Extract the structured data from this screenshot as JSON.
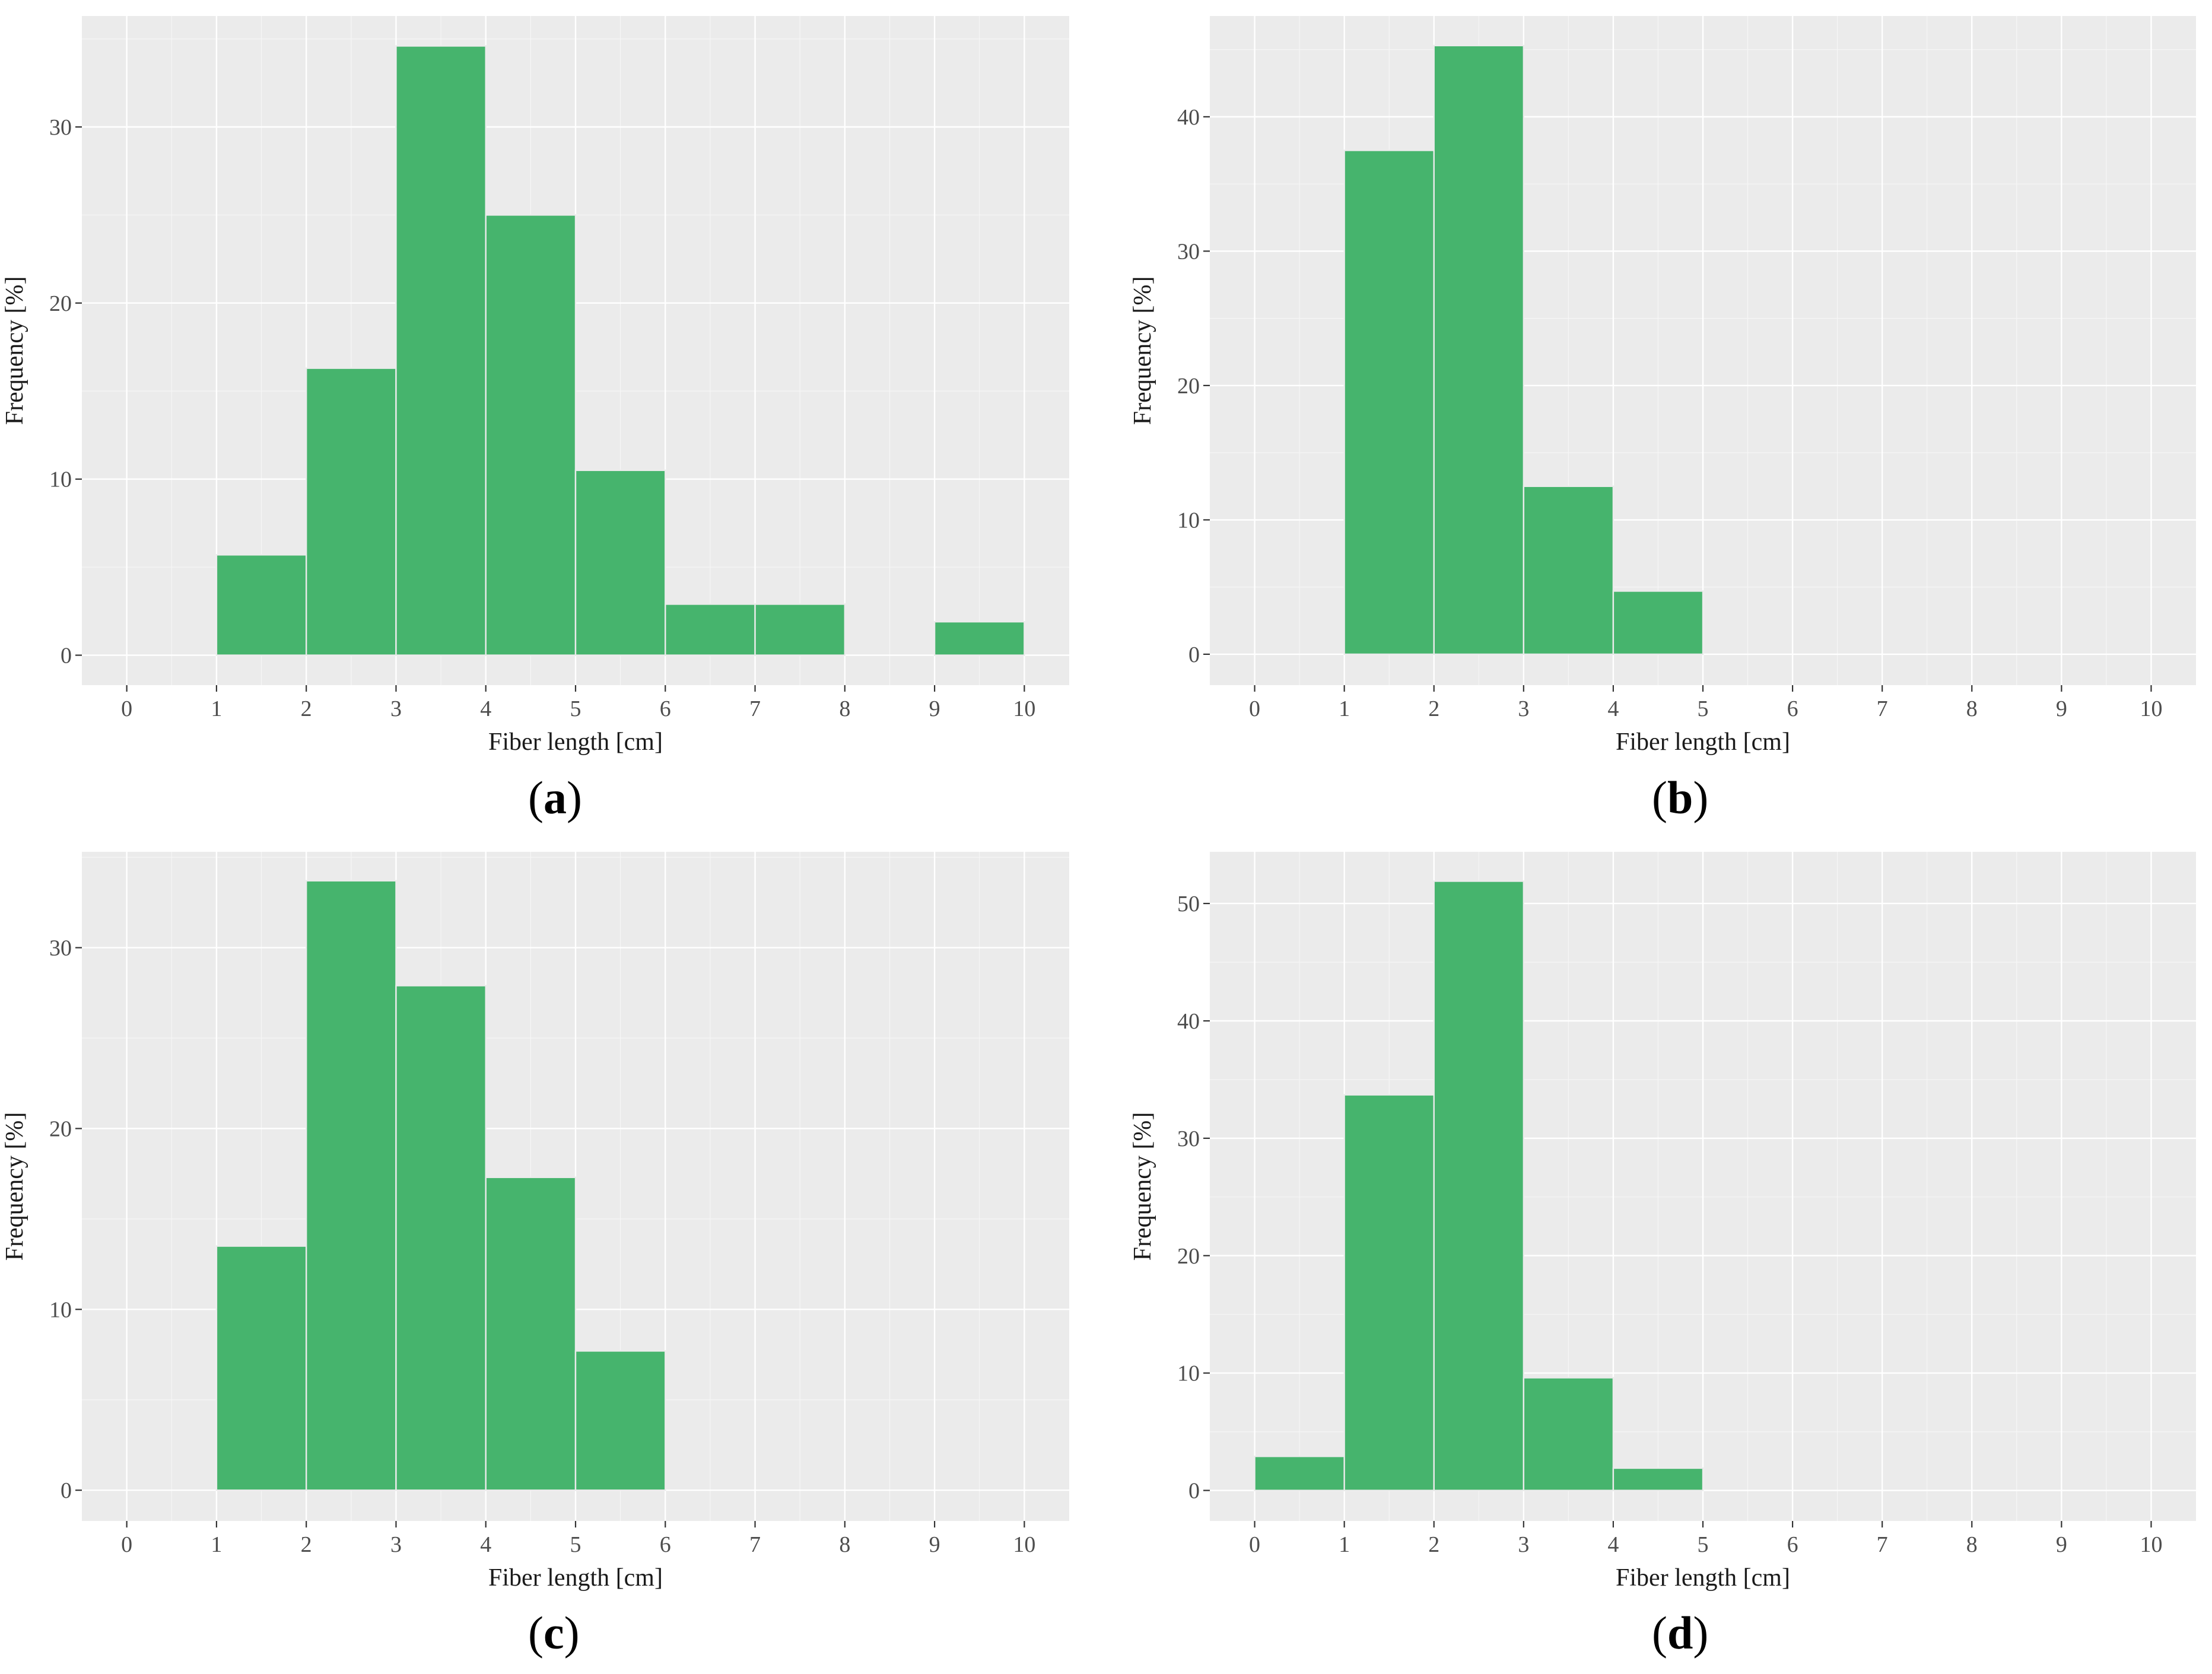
{
  "colors": {
    "bar": "#46b46d",
    "panel_bg": "#ebebeb",
    "grid": "#ffffff"
  },
  "chart_data": [
    {
      "id": "a",
      "type": "bar",
      "label": "a",
      "xlabel": "Fiber length [cm]",
      "ylabel": "Frequency [%]",
      "xlim": [
        -0.5,
        10.5
      ],
      "ylim": [
        -1.7,
        36.3
      ],
      "x_ticks": [
        0,
        1,
        2,
        3,
        4,
        5,
        6,
        7,
        8,
        9,
        10
      ],
      "y_ticks": [
        0,
        10,
        20,
        30
      ],
      "bins": [
        {
          "from": 1,
          "to": 2,
          "value": 5.7
        },
        {
          "from": 2,
          "to": 3,
          "value": 16.3
        },
        {
          "from": 3,
          "to": 4,
          "value": 34.6
        },
        {
          "from": 4,
          "to": 5,
          "value": 25.0
        },
        {
          "from": 5,
          "to": 6,
          "value": 10.5
        },
        {
          "from": 6,
          "to": 7,
          "value": 2.9
        },
        {
          "from": 7,
          "to": 8,
          "value": 2.9
        },
        {
          "from": 9,
          "to": 10,
          "value": 1.9
        }
      ]
    },
    {
      "id": "b",
      "type": "bar",
      "label": "b",
      "xlabel": "Fiber length [cm]",
      "ylabel": "Frequency [%]",
      "xlim": [
        -0.5,
        10.5
      ],
      "ylim": [
        -2.3,
        47.5
      ],
      "x_ticks": [
        0,
        1,
        2,
        3,
        4,
        5,
        6,
        7,
        8,
        9,
        10
      ],
      "y_ticks": [
        0,
        10,
        20,
        30,
        40
      ],
      "bins": [
        {
          "from": 1,
          "to": 2,
          "value": 37.5
        },
        {
          "from": 2,
          "to": 3,
          "value": 45.3
        },
        {
          "from": 3,
          "to": 4,
          "value": 12.5
        },
        {
          "from": 4,
          "to": 5,
          "value": 4.7
        }
      ]
    },
    {
      "id": "c",
      "type": "bar",
      "label": "c",
      "xlabel": "Fiber length [cm]",
      "ylabel": "Frequency [%]",
      "xlim": [
        -0.5,
        10.5
      ],
      "ylim": [
        -1.7,
        35.3
      ],
      "x_ticks": [
        0,
        1,
        2,
        3,
        4,
        5,
        6,
        7,
        8,
        9,
        10
      ],
      "y_ticks": [
        0,
        10,
        20,
        30
      ],
      "bins": [
        {
          "from": 1,
          "to": 2,
          "value": 13.5
        },
        {
          "from": 2,
          "to": 3,
          "value": 33.7
        },
        {
          "from": 3,
          "to": 4,
          "value": 27.9
        },
        {
          "from": 4,
          "to": 5,
          "value": 17.3
        },
        {
          "from": 5,
          "to": 6,
          "value": 7.7
        }
      ]
    },
    {
      "id": "d",
      "type": "bar",
      "label": "d",
      "xlabel": "Fiber length [cm]",
      "ylabel": "Frequency [%]",
      "xlim": [
        -0.5,
        10.5
      ],
      "ylim": [
        -2.6,
        54.4
      ],
      "x_ticks": [
        0,
        1,
        2,
        3,
        4,
        5,
        6,
        7,
        8,
        9,
        10
      ],
      "y_ticks": [
        0,
        10,
        20,
        30,
        40,
        50
      ],
      "bins": [
        {
          "from": 0,
          "to": 1,
          "value": 2.9
        },
        {
          "from": 1,
          "to": 2,
          "value": 33.7
        },
        {
          "from": 2,
          "to": 3,
          "value": 51.9
        },
        {
          "from": 3,
          "to": 4,
          "value": 9.6
        },
        {
          "from": 4,
          "to": 5,
          "value": 1.9
        }
      ]
    }
  ]
}
